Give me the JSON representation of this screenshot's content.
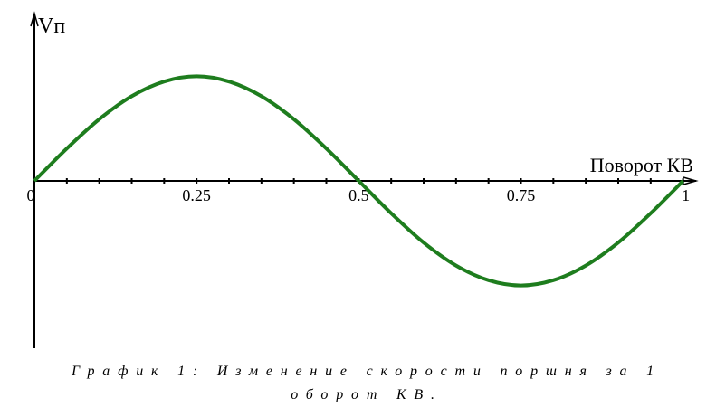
{
  "chart_data": {
    "type": "line",
    "y_label": "Vп",
    "x_label": "Поворот КВ",
    "caption": "График 1: Изменение скорости поршня за 1 оборот КВ.",
    "x": [
      0,
      0.05,
      0.1,
      0.15,
      0.2,
      0.25,
      0.3,
      0.35,
      0.4,
      0.45,
      0.5,
      0.55,
      0.6,
      0.65,
      0.7,
      0.75,
      0.8,
      0.85,
      0.9,
      0.95,
      1
    ],
    "series": [
      {
        "color": "#1e7d1e",
        "values": [
          0,
          0.31,
          0.59,
          0.81,
          0.95,
          1,
          0.95,
          0.81,
          0.59,
          0.31,
          0,
          -0.31,
          -0.59,
          -0.81,
          -0.95,
          -1,
          -0.95,
          -0.81,
          -0.59,
          -0.31,
          0
        ]
      }
    ],
    "xlim": [
      0,
      1.02
    ],
    "ylim": [
      -1.6,
      1.6
    ],
    "xticks": [
      0,
      0.25,
      0.5,
      0.75,
      1
    ],
    "minor_xticks": [
      0.05,
      0.1,
      0.15,
      0.2,
      0.3,
      0.35,
      0.4,
      0.45,
      0.55,
      0.6,
      0.65,
      0.7,
      0.8,
      0.85,
      0.9,
      0.95
    ]
  }
}
